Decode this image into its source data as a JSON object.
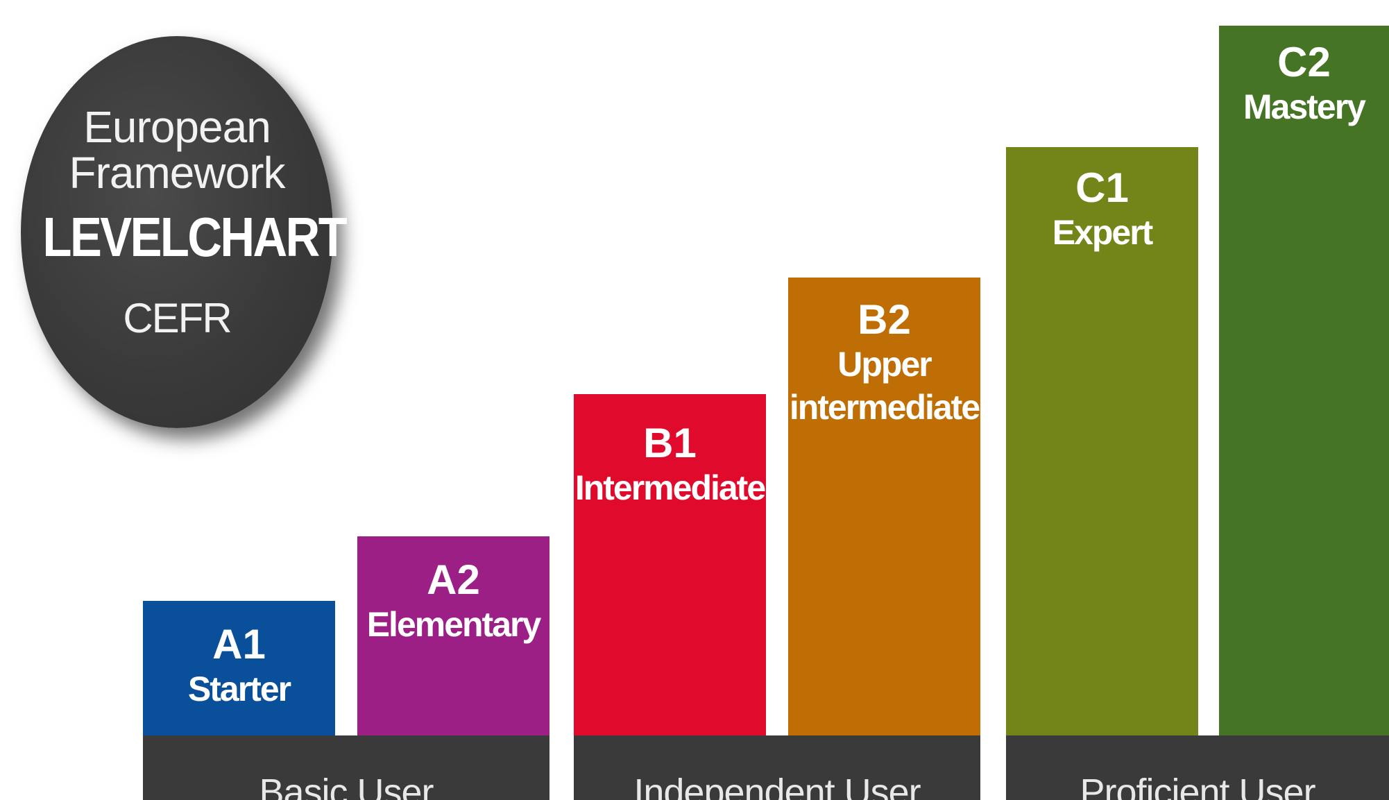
{
  "badge": {
    "line1": "European",
    "line2": "Framework",
    "title": "LEVELCHART",
    "subtitle": "CEFR"
  },
  "colors": {
    "A1": "#0a4f9a",
    "A2": "#9b1f85",
    "B1": "#e00a2c",
    "B2": "#bf6e06",
    "C1": "#738518",
    "C2": "#447424",
    "group_band": "#3a3a3a",
    "badge": "#3a3a3a"
  },
  "levels": [
    {
      "code": "A1",
      "name": "Starter"
    },
    {
      "code": "A2",
      "name": "Elementary"
    },
    {
      "code": "B1",
      "name": "Intermediate"
    },
    {
      "code": "B2",
      "name": "Upper",
      "name2": "intermediate"
    },
    {
      "code": "C1",
      "name": "Expert"
    },
    {
      "code": "C2",
      "name": "Mastery"
    }
  ],
  "groups": [
    {
      "label": "Basic User"
    },
    {
      "label": "Independent User"
    },
    {
      "label": "Proficient User"
    }
  ]
}
